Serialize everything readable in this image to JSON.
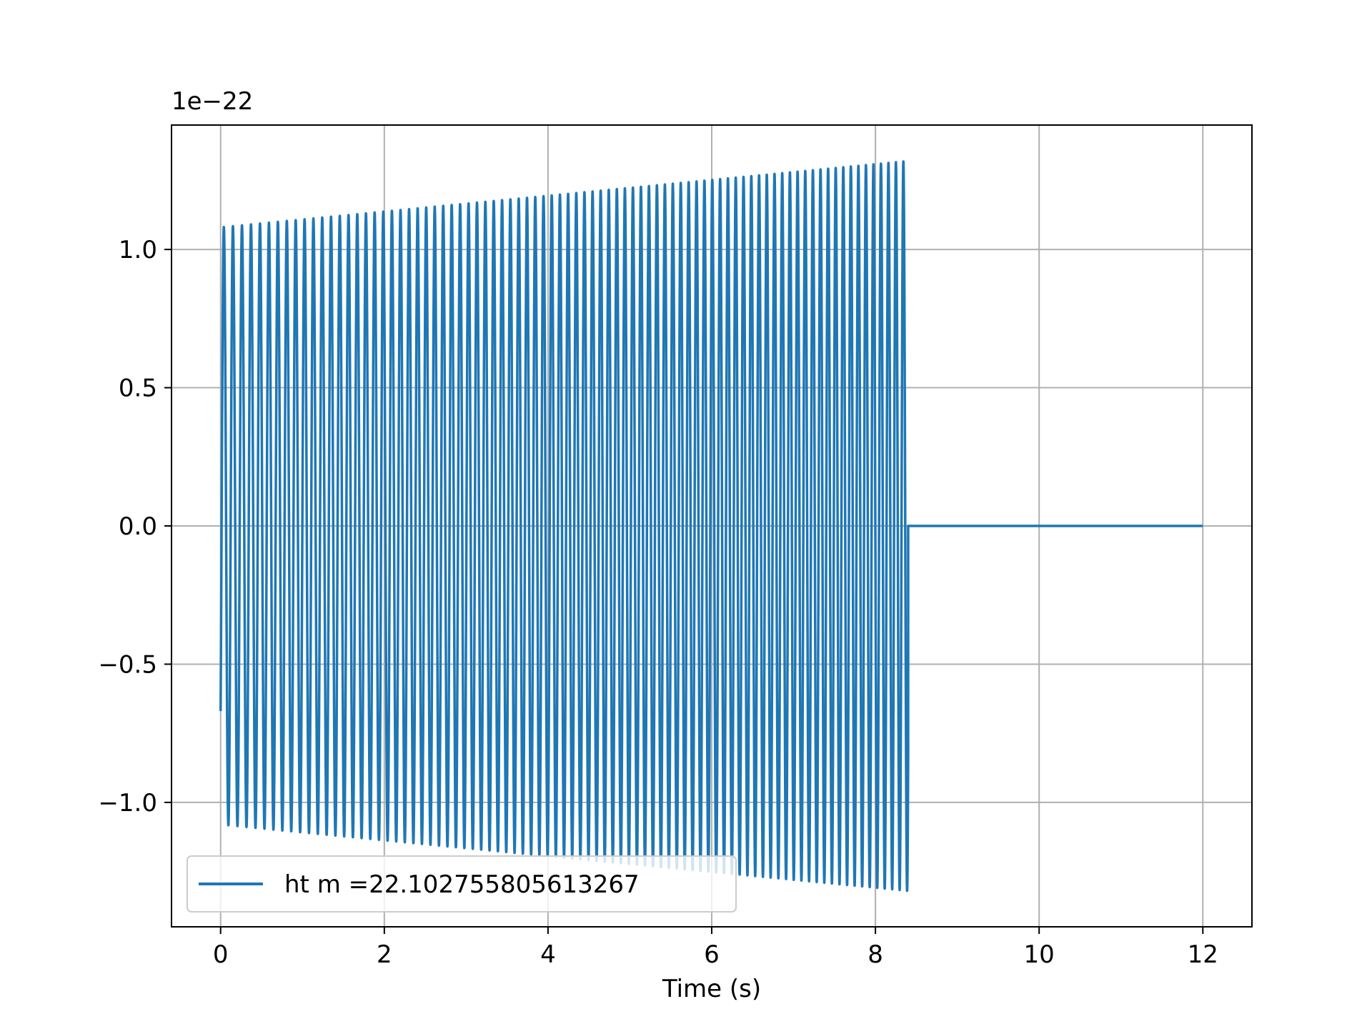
{
  "chart_data": {
    "type": "line",
    "title": "",
    "xlabel": "Time (s)",
    "ylabel": "",
    "y_offset_text": "1e−22",
    "xlim": [
      -0.6,
      12.6
    ],
    "ylim": [
      -1.45,
      1.45
    ],
    "grid": true,
    "legend_position": "lower-left",
    "x_ticks": [
      0,
      2,
      4,
      6,
      8,
      10,
      12
    ],
    "x_tick_labels": [
      "0",
      "2",
      "4",
      "6",
      "8",
      "10",
      "12"
    ],
    "y_ticks": [
      -1.0,
      -0.5,
      0.0,
      0.5,
      1.0
    ],
    "y_tick_labels": [
      "−1.0",
      "−0.5",
      "0.0",
      "0.5",
      "1.0"
    ],
    "series": [
      {
        "name": "ht m =22.102755805613267",
        "color": "#1f77b4",
        "signal": {
          "kind": "chirp",
          "t_start": 0.0,
          "t_end": 8.4,
          "t_total": 12.0,
          "cycles": 84,
          "amplitude_start": 1.08,
          "amplitude_end": 1.32,
          "final_value": 0.0
        }
      }
    ]
  }
}
